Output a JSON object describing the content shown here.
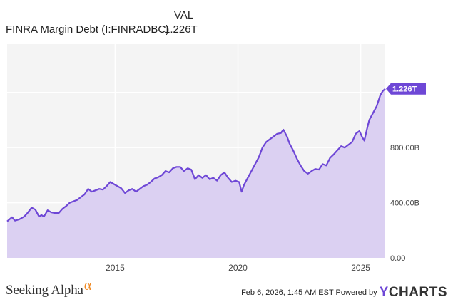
{
  "legend": {
    "value_header": "VAL",
    "series_name": "FINRA Margin Debt (I:FINRADBC)",
    "series_value": "1.226T"
  },
  "footer": {
    "brand": "Seeking Alpha",
    "brand_mark": "α",
    "timestamp": "Feb 6, 2026, 1:45 AM EST Powered by",
    "ycharts_y": "Y",
    "ycharts_rest": "CHARTS"
  },
  "colors": {
    "line": "#6e47d6",
    "fill": "#d9cdf1",
    "plot_bg": "#f4f4f4",
    "grid": "#ffffff"
  },
  "chart_data": {
    "type": "area",
    "title": "",
    "xlabel": "",
    "ylabel": "",
    "xlim": [
      2010.6,
      2026.0
    ],
    "ylim": [
      0,
      1.55
    ],
    "y_unit": "trillion USD",
    "x_ticks": [
      2015,
      2020,
      2025
    ],
    "x_tick_labels": [
      "2015",
      "2020",
      "2025"
    ],
    "y_ticks": [
      0,
      0.4,
      0.8
    ],
    "y_tick_labels": [
      "0.00",
      "400.00B",
      "800.00B"
    ],
    "last_value_label": "1.226T",
    "grid": true,
    "series": [
      {
        "name": "FINRA Margin Debt (I:FINRADBC)",
        "x": [
          2010.6,
          2010.8,
          2010.92,
          2011.1,
          2011.3,
          2011.45,
          2011.6,
          2011.75,
          2011.9,
          2012.0,
          2012.1,
          2012.25,
          2012.4,
          2012.55,
          2012.7,
          2012.85,
          2013.0,
          2013.15,
          2013.3,
          2013.45,
          2013.6,
          2013.75,
          2013.9,
          2014.05,
          2014.2,
          2014.35,
          2014.5,
          2014.65,
          2014.8,
          2014.95,
          2015.1,
          2015.25,
          2015.4,
          2015.55,
          2015.7,
          2015.85,
          2016.0,
          2016.15,
          2016.3,
          2016.45,
          2016.6,
          2016.75,
          2016.9,
          2017.05,
          2017.2,
          2017.35,
          2017.5,
          2017.65,
          2017.8,
          2017.95,
          2018.1,
          2018.25,
          2018.4,
          2018.55,
          2018.7,
          2018.85,
          2019.0,
          2019.15,
          2019.3,
          2019.45,
          2019.6,
          2019.75,
          2019.9,
          2020.05,
          2020.15,
          2020.25,
          2020.4,
          2020.55,
          2020.7,
          2020.85,
          2021.0,
          2021.15,
          2021.3,
          2021.45,
          2021.6,
          2021.75,
          2021.85,
          2022.0,
          2022.1,
          2022.25,
          2022.4,
          2022.55,
          2022.7,
          2022.85,
          2023.0,
          2023.15,
          2023.3,
          2023.45,
          2023.6,
          2023.75,
          2023.9,
          2024.05,
          2024.2,
          2024.35,
          2024.5,
          2024.65,
          2024.8,
          2024.95,
          2025.05,
          2025.15,
          2025.25,
          2025.35,
          2025.5,
          2025.65,
          2025.8,
          2025.9,
          2026.0
        ],
        "values": [
          0.265,
          0.295,
          0.27,
          0.28,
          0.3,
          0.33,
          0.365,
          0.35,
          0.3,
          0.31,
          0.3,
          0.345,
          0.33,
          0.325,
          0.325,
          0.355,
          0.375,
          0.4,
          0.41,
          0.42,
          0.44,
          0.46,
          0.5,
          0.48,
          0.49,
          0.5,
          0.495,
          0.52,
          0.55,
          0.535,
          0.52,
          0.505,
          0.47,
          0.49,
          0.5,
          0.48,
          0.5,
          0.52,
          0.53,
          0.55,
          0.575,
          0.585,
          0.6,
          0.63,
          0.62,
          0.65,
          0.66,
          0.66,
          0.63,
          0.65,
          0.64,
          0.57,
          0.6,
          0.58,
          0.6,
          0.57,
          0.58,
          0.56,
          0.6,
          0.62,
          0.58,
          0.55,
          0.56,
          0.55,
          0.48,
          0.53,
          0.58,
          0.63,
          0.68,
          0.73,
          0.8,
          0.84,
          0.86,
          0.88,
          0.9,
          0.905,
          0.93,
          0.88,
          0.83,
          0.78,
          0.72,
          0.67,
          0.63,
          0.61,
          0.63,
          0.645,
          0.64,
          0.68,
          0.67,
          0.725,
          0.75,
          0.78,
          0.81,
          0.8,
          0.82,
          0.84,
          0.9,
          0.92,
          0.88,
          0.85,
          0.93,
          1.0,
          1.05,
          1.1,
          1.18,
          1.21,
          1.226
        ]
      }
    ]
  }
}
